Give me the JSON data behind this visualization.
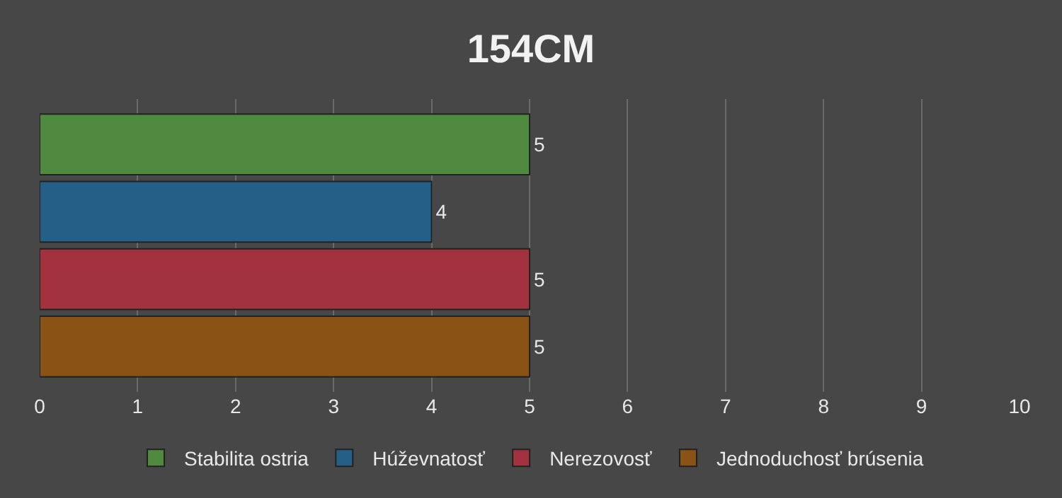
{
  "chart_data": {
    "type": "bar",
    "orientation": "horizontal",
    "title": "154CM",
    "categories": [
      null
    ],
    "series": [
      {
        "name": "Stabilita ostria",
        "color": "#4f8a3e",
        "values": [
          5
        ]
      },
      {
        "name": "Húževnatosť",
        "color": "#245f87",
        "values": [
          4
        ]
      },
      {
        "name": "Nerezovosť",
        "color": "#a3323f",
        "values": [
          5
        ]
      },
      {
        "name": "Jednoduchosť brúsenia",
        "color": "#8a5214",
        "values": [
          5
        ]
      }
    ],
    "xlim": [
      0,
      10
    ],
    "xticks": [
      0,
      1,
      2,
      3,
      4,
      5,
      6,
      7,
      8,
      9,
      10
    ],
    "grid": "x",
    "legend": "bottom",
    "data_labels": true,
    "tick_labels": "x"
  }
}
